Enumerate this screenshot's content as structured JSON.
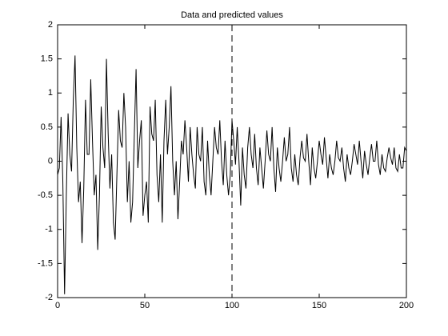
{
  "chart_data": {
    "type": "line",
    "title": "Data and predicted values",
    "x": [
      0,
      1,
      2,
      3,
      4,
      5,
      6,
      7,
      8,
      9,
      10,
      11,
      12,
      13,
      14,
      15,
      16,
      17,
      18,
      19,
      20,
      21,
      22,
      23,
      24,
      25,
      26,
      27,
      28,
      29,
      30,
      31,
      32,
      33,
      34,
      35,
      36,
      37,
      38,
      39,
      40,
      41,
      42,
      43,
      44,
      45,
      46,
      47,
      48,
      49,
      50,
      51,
      52,
      53,
      54,
      55,
      56,
      57,
      58,
      59,
      60,
      61,
      62,
      63,
      64,
      65,
      66,
      67,
      68,
      69,
      70,
      71,
      72,
      73,
      74,
      75,
      76,
      77,
      78,
      79,
      80,
      81,
      82,
      83,
      84,
      85,
      86,
      87,
      88,
      89,
      90,
      91,
      92,
      93,
      94,
      95,
      96,
      97,
      98,
      99,
      100,
      101,
      102,
      103,
      104,
      105,
      106,
      107,
      108,
      109,
      110,
      111,
      112,
      113,
      114,
      115,
      116,
      117,
      118,
      119,
      120,
      121,
      122,
      123,
      124,
      125,
      126,
      127,
      128,
      129,
      130,
      131,
      132,
      133,
      134,
      135,
      136,
      137,
      138,
      139,
      140,
      141,
      142,
      143,
      144,
      145,
      146,
      147,
      148,
      149,
      150,
      151,
      152,
      153,
      154,
      155,
      156,
      157,
      158,
      159,
      160,
      161,
      162,
      163,
      164,
      165,
      166,
      167,
      168,
      169,
      170,
      171,
      172,
      173,
      174,
      175,
      176,
      177,
      178,
      179,
      180,
      181,
      182,
      183,
      184,
      185,
      186,
      187,
      188,
      189,
      190,
      191,
      192,
      193,
      194,
      195,
      196,
      197,
      198,
      199,
      200
    ],
    "series": [
      {
        "color": "#000000",
        "values": [
          -0.2,
          -0.1,
          0.65,
          -0.3,
          -1.95,
          -0.5,
          0.7,
          0.1,
          -0.15,
          0.9,
          1.55,
          0.2,
          -0.6,
          -0.3,
          -1.2,
          -0.4,
          0.9,
          0.1,
          0.1,
          1.2,
          0.3,
          -0.5,
          -0.2,
          -1.3,
          -0.5,
          0.8,
          0.2,
          -0.1,
          1.5,
          0.4,
          -0.4,
          0.1,
          -0.9,
          -1.15,
          -0.2,
          0.75,
          0.3,
          0.2,
          1.0,
          0.5,
          -0.6,
          0.0,
          -0.9,
          -0.6,
          0.4,
          1.35,
          -0.1,
          0.3,
          0.6,
          -0.8,
          -0.5,
          -0.3,
          -0.9,
          0.8,
          0.4,
          0.3,
          0.9,
          -0.2,
          -0.6,
          0.1,
          -0.9,
          0.3,
          0.9,
          0.1,
          0.5,
          1.1,
          0.0,
          -0.5,
          0.0,
          -0.85,
          -0.3,
          0.3,
          0.1,
          0.6,
          0.2,
          -0.3,
          0.5,
          0.1,
          -0.2,
          -0.4,
          0.5,
          0.1,
          0.0,
          0.5,
          -0.3,
          -0.5,
          0.3,
          -0.2,
          -0.5,
          0.0,
          0.5,
          0.2,
          0.1,
          0.6,
          0.0,
          -0.35,
          0.3,
          -0.2,
          -0.5,
          -0.2,
          0.6,
          0.3,
          -0.05,
          0.5,
          0.0,
          -0.65,
          0.2,
          -0.2,
          -0.4,
          0.2,
          0.5,
          0.1,
          -0.1,
          0.4,
          -0.1,
          -0.35,
          0.2,
          -0.1,
          -0.4,
          0.0,
          0.45,
          0.1,
          0.0,
          0.5,
          -0.1,
          -0.45,
          0.2,
          -0.1,
          -0.3,
          0.0,
          0.35,
          0.0,
          0.1,
          0.5,
          -0.1,
          -0.3,
          0.1,
          -0.2,
          -0.35,
          0.05,
          0.3,
          0.05,
          0.0,
          0.4,
          0.0,
          -0.35,
          0.2,
          -0.1,
          -0.25,
          0.0,
          0.3,
          0.1,
          -0.05,
          0.35,
          0.05,
          -0.25,
          0.1,
          -0.1,
          -0.2,
          0.0,
          0.3,
          0.05,
          0.0,
          0.2,
          -0.1,
          -0.3,
          0.1,
          -0.1,
          -0.2,
          0.0,
          0.25,
          0.1,
          -0.05,
          0.3,
          0.0,
          -0.25,
          0.15,
          -0.05,
          -0.2,
          0.05,
          0.25,
          0.0,
          0.0,
          0.3,
          -0.05,
          -0.2,
          0.1,
          -0.1,
          -0.15,
          0.05,
          0.2,
          0.05,
          -0.05,
          0.2,
          -0.1,
          -0.15,
          0.1,
          -0.1,
          -0.1,
          0.2,
          0.15
        ]
      }
    ],
    "vlines": [
      {
        "x": 100,
        "style": "dashed",
        "color": "#000000"
      }
    ],
    "xlim": [
      0,
      200
    ],
    "xticks": [
      0,
      50,
      100,
      150,
      200
    ],
    "ylim": [
      -2,
      2
    ],
    "yticks": [
      -2,
      -1.5,
      -1,
      -0.5,
      0,
      0.5,
      1,
      1.5,
      2
    ],
    "grid": false
  }
}
